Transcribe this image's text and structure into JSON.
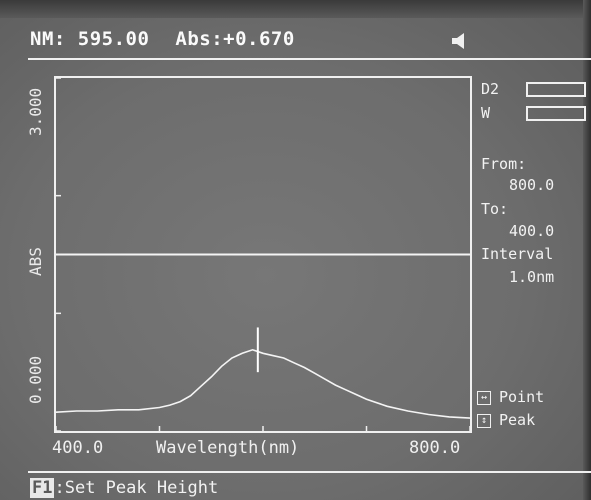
{
  "header": {
    "nm": "NM: 595.00",
    "abs": "Abs:+0.670"
  },
  "yaxis": {
    "top_label": "3.000",
    "mid_label": "ABS",
    "bottom_label": "0.000"
  },
  "xaxis": {
    "start": "400.0",
    "label": "Wavelength(nm)",
    "end": "800.0"
  },
  "lamps": {
    "d2": "D2",
    "w": "W"
  },
  "range": {
    "from_label": "From:",
    "from_value": "800.0",
    "to_label": "To:",
    "to_value": "400.0",
    "interval_label": "Interval",
    "interval_value": "1.0nm"
  },
  "modes": {
    "point": "Point",
    "peak": "Peak"
  },
  "footer": {
    "key": "F1",
    "text": ":Set Peak Height"
  },
  "chart_data": {
    "type": "line",
    "xlabel": "Wavelength(nm)",
    "ylabel": "ABS",
    "xlim": [
      400,
      800
    ],
    "ylim": [
      0,
      3
    ],
    "cursor_x": 595,
    "threshold_y": 1.5,
    "series": [
      {
        "x": [
          400,
          420,
          440,
          460,
          480,
          500,
          510,
          520,
          530,
          540,
          550,
          560,
          570,
          580,
          590,
          600,
          610,
          620,
          630,
          640,
          650,
          660,
          670,
          680,
          690,
          700,
          720,
          740,
          760,
          780,
          800
        ],
        "y": [
          0.16,
          0.17,
          0.17,
          0.18,
          0.18,
          0.2,
          0.22,
          0.25,
          0.3,
          0.38,
          0.46,
          0.55,
          0.62,
          0.66,
          0.69,
          0.66,
          0.64,
          0.62,
          0.58,
          0.54,
          0.49,
          0.44,
          0.39,
          0.35,
          0.31,
          0.27,
          0.21,
          0.17,
          0.14,
          0.12,
          0.11
        ]
      }
    ]
  }
}
